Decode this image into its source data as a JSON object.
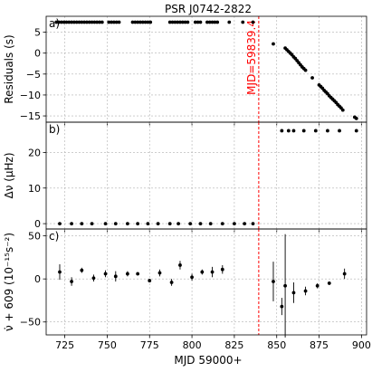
{
  "figure_title": "PSR J0742-2822",
  "x_axis_label": "MJD 59000+",
  "x_tick_labels": [
    "725",
    "750",
    "775",
    "800",
    "825",
    "850",
    "875",
    "900"
  ],
  "colors": {
    "points": "#000000",
    "marker_line": "#ff0000",
    "grid": "#b0b0b0",
    "frame": "#000000"
  },
  "chart_data": [
    {
      "type": "scatter",
      "panel_label": "a)",
      "ylabel": "Residuals (s)",
      "xlim": [
        714,
        903
      ],
      "ylim": [
        -16.5,
        8.8
      ],
      "yticks": [
        -15,
        -10,
        -5,
        0,
        5
      ],
      "ytick_labels": [
        "−15",
        "−10",
        "−5",
        "0",
        "5"
      ],
      "grid": true,
      "vline": {
        "x": 839.4,
        "label": "MJD=59839.4"
      },
      "series": [
        {
          "points": [
            [
              720,
              7.4
            ],
            [
              721.5,
              7.4
            ],
            [
              723,
              7.4
            ],
            [
              724.5,
              7.4
            ],
            [
              726,
              7.4
            ],
            [
              727.5,
              7.4
            ],
            [
              729,
              7.4
            ],
            [
              730.5,
              7.4
            ],
            [
              732,
              7.4
            ],
            [
              733.5,
              7.4
            ],
            [
              735,
              7.4
            ],
            [
              736.5,
              7.4
            ],
            [
              738,
              7.4
            ],
            [
              739.5,
              7.4
            ],
            [
              741,
              7.4
            ],
            [
              742.5,
              7.4
            ],
            [
              744,
              7.4
            ],
            [
              745.5,
              7.4
            ],
            [
              747,
              7.4
            ],
            [
              751,
              7.4
            ],
            [
              752.5,
              7.4
            ],
            [
              754,
              7.4
            ],
            [
              755.5,
              7.4
            ],
            [
              757,
              7.4
            ],
            [
              765,
              7.4
            ],
            [
              766.5,
              7.4
            ],
            [
              768,
              7.4
            ],
            [
              769.5,
              7.4
            ],
            [
              771,
              7.4
            ],
            [
              772.5,
              7.4
            ],
            [
              774,
              7.4
            ],
            [
              775.5,
              7.4
            ],
            [
              787,
              7.4
            ],
            [
              788.5,
              7.4
            ],
            [
              790,
              7.4
            ],
            [
              791.5,
              7.4
            ],
            [
              793,
              7.4
            ],
            [
              794.5,
              7.4
            ],
            [
              796,
              7.4
            ],
            [
              797.5,
              7.4
            ],
            [
              802,
              7.4
            ],
            [
              803.5,
              7.4
            ],
            [
              805,
              7.4
            ],
            [
              809,
              7.4
            ],
            [
              810.5,
              7.4
            ],
            [
              812,
              7.4
            ],
            [
              813.5,
              7.4
            ],
            [
              815,
              7.4
            ],
            [
              822,
              7.4
            ],
            [
              830,
              7.4
            ],
            [
              836,
              7.4
            ],
            [
              848,
              2.2
            ],
            [
              855,
              1.2
            ],
            [
              856,
              0.8
            ],
            [
              857,
              0.4
            ],
            [
              858,
              0.0
            ],
            [
              859,
              -0.4
            ],
            [
              860,
              -0.9
            ],
            [
              861,
              -1.3
            ],
            [
              862,
              -1.8
            ],
            [
              863,
              -2.3
            ],
            [
              864,
              -2.8
            ],
            [
              865,
              -3.3
            ],
            [
              866,
              -3.7
            ],
            [
              867,
              -4.1
            ],
            [
              871,
              -5.9
            ],
            [
              875,
              -7.6
            ],
            [
              876,
              -8.0
            ],
            [
              877,
              -8.4
            ],
            [
              878,
              -8.9
            ],
            [
              879,
              -9.3
            ],
            [
              880,
              -9.7
            ],
            [
              881,
              -10.2
            ],
            [
              882,
              -10.6
            ],
            [
              883,
              -11.0
            ],
            [
              884,
              -11.4
            ],
            [
              885,
              -11.8
            ],
            [
              886,
              -12.3
            ],
            [
              887,
              -12.7
            ],
            [
              888,
              -13.1
            ],
            [
              889,
              -13.6
            ],
            [
              896,
              -15.3
            ],
            [
              897,
              -15.6
            ]
          ]
        }
      ]
    },
    {
      "type": "scatter",
      "panel_label": "b)",
      "ylabel": "Δν (μHz)",
      "xlim": [
        714,
        903
      ],
      "ylim": [
        -1.5,
        28.5
      ],
      "yticks": [
        0,
        10,
        20
      ],
      "ytick_labels": [
        "0",
        "10",
        "20"
      ],
      "grid": true,
      "vline": {
        "x": 839.4
      },
      "series": [
        {
          "points": [
            [
              722,
              0
            ],
            [
              729,
              0
            ],
            [
              735,
              0
            ],
            [
              741,
              0
            ],
            [
              749,
              0
            ],
            [
              755,
              0
            ],
            [
              762,
              0
            ],
            [
              768,
              0
            ],
            [
              774,
              0
            ],
            [
              780,
              0
            ],
            [
              787,
              0
            ],
            [
              792,
              0
            ],
            [
              799,
              0
            ],
            [
              805,
              0
            ],
            [
              811,
              0
            ],
            [
              818,
              0
            ],
            [
              825,
              0
            ],
            [
              831,
              0
            ],
            [
              836,
              0
            ],
            [
              853,
              26.1
            ],
            [
              857,
              26.1
            ],
            [
              860,
              26.1
            ],
            [
              866,
              26.1
            ],
            [
              873,
              26.1
            ],
            [
              880,
              26.1
            ],
            [
              887,
              26.1
            ],
            [
              897,
              26.1
            ]
          ]
        }
      ]
    },
    {
      "type": "scatter",
      "panel_label": "c)",
      "ylabel": "ν̇ + 609 (10⁻¹⁵s⁻²)",
      "xlim": [
        714,
        903
      ],
      "ylim": [
        -65,
        58
      ],
      "yticks": [
        -50,
        0,
        50
      ],
      "ytick_labels": [
        "−50",
        "0",
        "50"
      ],
      "grid": true,
      "vline": {
        "x": 839.4
      },
      "series": [
        {
          "points": [
            {
              "x": 722,
              "y": 8,
              "err": 9
            },
            {
              "x": 729,
              "y": -3,
              "err": 5
            },
            {
              "x": 735,
              "y": 10,
              "err": 3
            },
            {
              "x": 742,
              "y": 1,
              "err": 4
            },
            {
              "x": 749,
              "y": 6,
              "err": 4
            },
            {
              "x": 755,
              "y": 3,
              "err": 6
            },
            {
              "x": 762,
              "y": 6,
              "err": 3
            },
            {
              "x": 768,
              "y": 6,
              "err": 2
            },
            {
              "x": 775,
              "y": -2,
              "err": 2
            },
            {
              "x": 781,
              "y": 7,
              "err": 4
            },
            {
              "x": 788,
              "y": -4,
              "err": 4
            },
            {
              "x": 793,
              "y": 16,
              "err": 5
            },
            {
              "x": 800,
              "y": 2,
              "err": 4
            },
            {
              "x": 806,
              "y": 8,
              "err": 3
            },
            {
              "x": 812,
              "y": 8,
              "err": 6
            },
            {
              "x": 818,
              "y": 11,
              "err": 5
            },
            {
              "x": 848,
              "y": -3,
              "err": 23
            },
            {
              "x": 853,
              "y": -32,
              "err": 10
            },
            {
              "x": 855,
              "y": -8,
              "err": 60
            },
            {
              "x": 860,
              "y": -16,
              "err": 12
            },
            {
              "x": 867,
              "y": -14,
              "err": 5
            },
            {
              "x": 874,
              "y": -8,
              "err": 3
            },
            {
              "x": 881,
              "y": -5,
              "err": 2
            },
            {
              "x": 890,
              "y": 6,
              "err": 6
            }
          ]
        }
      ]
    }
  ]
}
